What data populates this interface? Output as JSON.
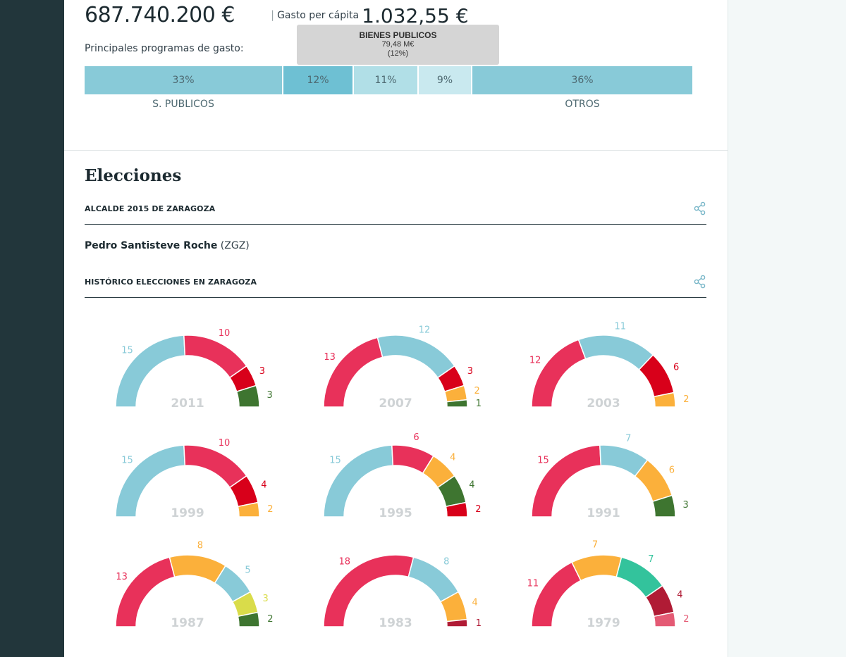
{
  "budget": {
    "total": "687.740.200 €",
    "percapita_sep": "|",
    "percapita_label": "Gasto per cápita",
    "percapita_value": "1.032,55 €",
    "programs_label": "Principales programas de gasto:",
    "segments": [
      {
        "pct": "33%",
        "value": 33,
        "color": "#88cad8"
      },
      {
        "pct": "12%",
        "value": 12,
        "color": "#6ec0d3"
      },
      {
        "pct": "11%",
        "value": 11,
        "color": "#b1dfe7"
      },
      {
        "pct": "9%",
        "value": 9,
        "color": "#c9e9ef"
      },
      {
        "pct": "36%",
        "value": 36,
        "color": "#88cad8"
      }
    ],
    "segment_labels": [
      "S. PUBLICOS",
      "OTROS"
    ],
    "tooltip": {
      "title": "BIENES PUBLICOS",
      "amount": "79,48 M€",
      "share": "(12%)"
    }
  },
  "elections": {
    "title": "Elecciones",
    "mayor_section": "ALCALDE 2015 DE ZARAGOZA",
    "mayor_name": "Pedro Santisteve Roche",
    "mayor_party": "(ZGZ)",
    "history_section": "HISTÓRICO ELECCIONES EN ZARAGOZA",
    "share_icon": "share-icon"
  },
  "chart_data": [
    {
      "type": "pie",
      "title": "2011",
      "values": [
        15,
        10,
        3,
        3
      ],
      "colors": [
        "#88cad8",
        "#e8315a",
        "#d8001a",
        "#3e7530"
      ]
    },
    {
      "type": "pie",
      "title": "2007",
      "values": [
        13,
        12,
        3,
        2,
        1
      ],
      "colors": [
        "#e8315a",
        "#88cad8",
        "#d8001a",
        "#fbb03b",
        "#3e7530"
      ]
    },
    {
      "type": "pie",
      "title": "2003",
      "values": [
        12,
        11,
        6,
        2
      ],
      "colors": [
        "#e8315a",
        "#88cad8",
        "#d8001a",
        "#fbb03b"
      ]
    },
    {
      "type": "pie",
      "title": "1999",
      "values": [
        15,
        10,
        4,
        2
      ],
      "colors": [
        "#88cad8",
        "#e8315a",
        "#d8001a",
        "#fbb03b"
      ]
    },
    {
      "type": "pie",
      "title": "1995",
      "values": [
        15,
        6,
        4,
        4,
        2
      ],
      "colors": [
        "#88cad8",
        "#e8315a",
        "#fbb03b",
        "#3e7530",
        "#d8001a"
      ]
    },
    {
      "type": "pie",
      "title": "1991",
      "values": [
        15,
        7,
        6,
        3
      ],
      "colors": [
        "#e8315a",
        "#88cad8",
        "#fbb03b",
        "#3e7530"
      ]
    },
    {
      "type": "pie",
      "title": "1987",
      "values": [
        13,
        8,
        5,
        3,
        2
      ],
      "colors": [
        "#e8315a",
        "#fbb03b",
        "#88cad8",
        "#d9dc4a",
        "#3e7530"
      ]
    },
    {
      "type": "pie",
      "title": "1983",
      "values": [
        18,
        8,
        4,
        1
      ],
      "colors": [
        "#e8315a",
        "#88cad8",
        "#fbb03b",
        "#b01b35"
      ]
    },
    {
      "type": "pie",
      "title": "1979",
      "values": [
        11,
        7,
        7,
        4,
        2
      ],
      "colors": [
        "#e8315a",
        "#fbb03b",
        "#33c39c",
        "#b01b35",
        "#e45a74"
      ]
    }
  ]
}
